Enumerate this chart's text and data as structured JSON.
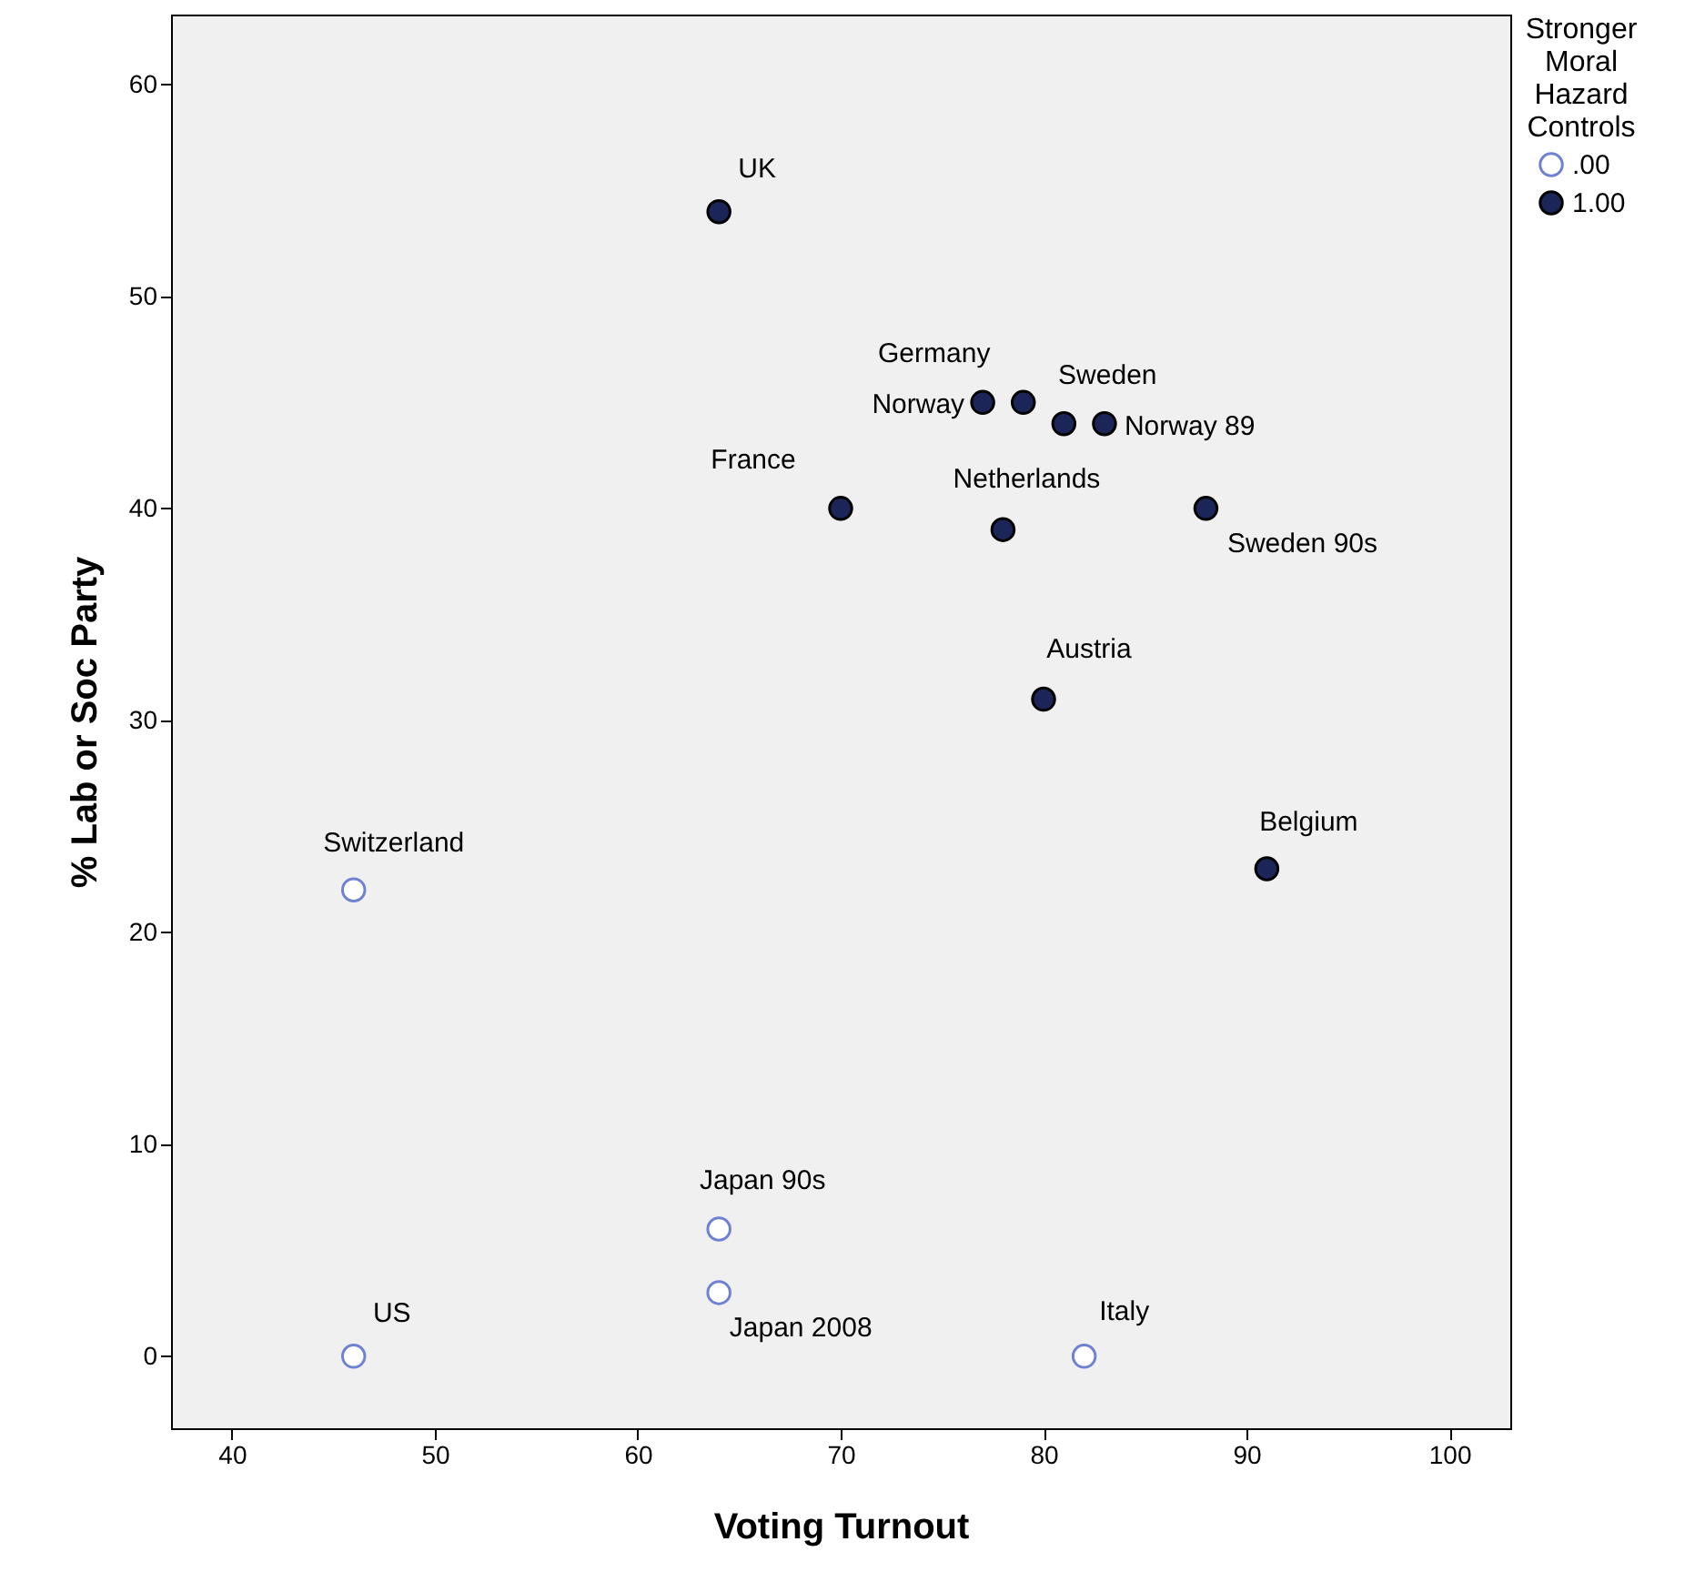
{
  "chart_data": {
    "type": "scatter",
    "xlabel": "Voting Turnout",
    "ylabel": "% Lab or Soc Party",
    "legend_title": "Stronger Moral Hazard Controls",
    "legend": "top right",
    "marker": "circle",
    "grid": false,
    "xlim": [
      37,
      103
    ],
    "ylim": [
      -3.4,
      63.3
    ],
    "xticks": [
      40,
      50,
      60,
      70,
      80,
      90,
      100
    ],
    "yticks": [
      0,
      10,
      20,
      30,
      40,
      50,
      60
    ],
    "series": [
      {
        "name": ".00",
        "color": "#6f82d2",
        "x": [
          46,
          46,
          64,
          64,
          82
        ],
        "values": [
          22,
          0,
          6,
          3,
          0
        ]
      },
      {
        "name": "1.00",
        "color": "#1c2557",
        "x": [
          64,
          77,
          79,
          81,
          83,
          70,
          78,
          88,
          80,
          91
        ],
        "values": [
          54,
          45,
          45,
          44,
          44,
          40,
          39,
          40,
          31,
          23
        ]
      }
    ],
    "annotations": [
      {
        "text": "UK",
        "x": 64,
        "y": 54
      },
      {
        "text": "Germany",
        "x": 79,
        "y": 45
      },
      {
        "text": "Norway",
        "x": 77,
        "y": 45
      },
      {
        "text": "Sweden",
        "x": 81,
        "y": 44
      },
      {
        "text": "Norway 89",
        "x": 83,
        "y": 44
      },
      {
        "text": "France",
        "x": 70,
        "y": 40
      },
      {
        "text": "Netherlands",
        "x": 78,
        "y": 39
      },
      {
        "text": "Sweden 90s",
        "x": 88,
        "y": 40
      },
      {
        "text": "Austria",
        "x": 80,
        "y": 31
      },
      {
        "text": "Belgium",
        "x": 91,
        "y": 23
      },
      {
        "text": "Switzerland",
        "x": 46,
        "y": 22
      },
      {
        "text": "US",
        "x": 46,
        "y": 0
      },
      {
        "text": "Japan 90s",
        "x": 64,
        "y": 6
      },
      {
        "text": "Japan 2008",
        "x": 64,
        "y": 3
      },
      {
        "text": "Italy",
        "x": 82,
        "y": 0
      }
    ]
  }
}
